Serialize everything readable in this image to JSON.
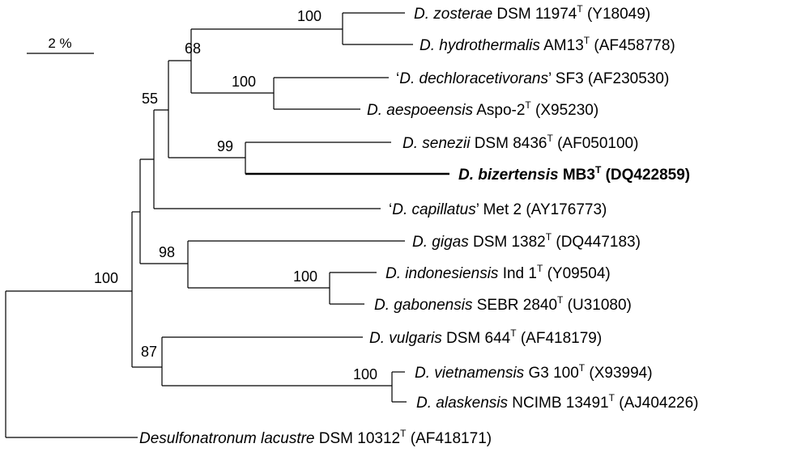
{
  "scale_bar": {
    "label": "2 %"
  },
  "taxa": [
    {
      "id": "zosterae",
      "quote": false,
      "italic": "D. zosterae",
      "strain": "DSM 11974",
      "type_strain": true,
      "accession": "(Y18049)",
      "bold": false
    },
    {
      "id": "hydrothermalis",
      "quote": false,
      "italic": "D. hydrothermalis",
      "strain": "AM13",
      "type_strain": true,
      "accession": "(AF458778)",
      "bold": false
    },
    {
      "id": "dechloracetivorans",
      "quote": true,
      "italic": "D. dechloracetivorans",
      "strain": "SF3",
      "type_strain": false,
      "accession": "(AF230530)",
      "bold": false
    },
    {
      "id": "aespoeensis",
      "quote": false,
      "italic": "D. aespoeensis",
      "strain": "Aspo-2",
      "type_strain": true,
      "accession": "(X95230)",
      "bold": false
    },
    {
      "id": "senezii",
      "quote": false,
      "italic": "D. senezii",
      "strain": "DSM 8436",
      "type_strain": true,
      "accession": "(AF050100)",
      "bold": false
    },
    {
      "id": "bizertensis",
      "quote": false,
      "italic": "D. bizertensis",
      "strain": "MB3",
      "type_strain": true,
      "accession": "(DQ422859)",
      "bold": true
    },
    {
      "id": "capillatus",
      "quote": true,
      "italic": "D. capillatus",
      "strain": "Met 2",
      "type_strain": false,
      "accession": "(AY176773)",
      "bold": false
    },
    {
      "id": "gigas",
      "quote": false,
      "italic": "D. gigas",
      "strain": "DSM 1382",
      "type_strain": true,
      "accession": "(DQ447183)",
      "bold": false
    },
    {
      "id": "indonesiensis",
      "quote": false,
      "italic": "D. indonesiensis",
      "strain": "Ind 1",
      "type_strain": true,
      "accession": "(Y09504)",
      "bold": false
    },
    {
      "id": "gabonensis",
      "quote": false,
      "italic": "D. gabonensis",
      "strain": "SEBR 2840",
      "type_strain": true,
      "accession": "(U31080)",
      "bold": false
    },
    {
      "id": "vulgaris",
      "quote": false,
      "italic": "D. vulgaris",
      "strain": "DSM 644",
      "type_strain": true,
      "accession": "(AF418179)",
      "bold": false
    },
    {
      "id": "vietnamensis",
      "quote": false,
      "italic": "D. vietnamensis",
      "strain": "G3 100",
      "type_strain": true,
      "accession": "(X93994)",
      "bold": false
    },
    {
      "id": "alaskensis",
      "quote": false,
      "italic": "D. alaskensis",
      "strain": "NCIMB 13491",
      "type_strain": true,
      "accession": "(AJ404226)",
      "bold": false
    },
    {
      "id": "lacustre",
      "quote": false,
      "italic": "Desulfonatronum lacustre",
      "strain": "DSM 10312",
      "type_strain": true,
      "accession": "(AF418171)",
      "bold": false
    }
  ],
  "type_marker": "T",
  "bootstrap_values": [
    {
      "node": "zosterae-hydrothermalis",
      "value": "100"
    },
    {
      "node": "dechloracetivorans-aespoeensis",
      "value": "100"
    },
    {
      "node": "zosterae-dechloracetivorans-clade",
      "value": "68"
    },
    {
      "node": "senezii-bizertensis",
      "value": "99"
    },
    {
      "node": "upper-clade",
      "value": "55"
    },
    {
      "node": "indonesiensis-gabonensis",
      "value": "100"
    },
    {
      "node": "gigas-clade",
      "value": "98"
    },
    {
      "node": "vietnamensis-alaskensis",
      "value": "100"
    },
    {
      "node": "vulgaris-clade",
      "value": "87"
    },
    {
      "node": "desulfovibrio",
      "value": "100"
    }
  ]
}
